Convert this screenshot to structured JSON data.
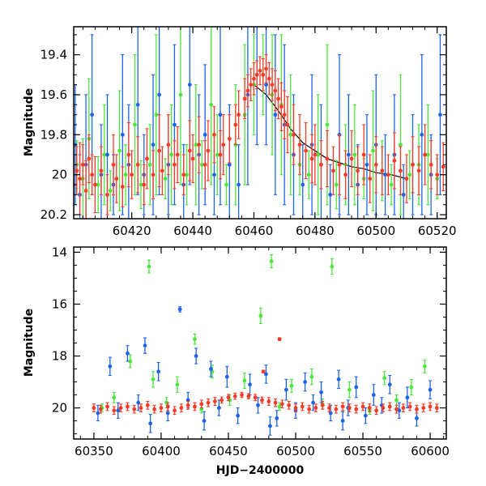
{
  "chart_data": [
    {
      "id": "top",
      "type": "scatter",
      "title": "",
      "xlabel": "",
      "ylabel": "Magnitude",
      "xlim": [
        60401,
        60523
      ],
      "ylim": [
        20.22,
        19.26
      ],
      "y_inverted": true,
      "x_ticks": [
        60420,
        60440,
        60460,
        60480,
        60500,
        60520
      ],
      "y_ticks": [
        19.4,
        19.6,
        19.8,
        20,
        20.2
      ],
      "x_tick_labels": [
        "60420",
        "60440",
        "60460",
        "60480",
        "60500",
        "60520"
      ],
      "y_tick_labels": [
        "19.4",
        "19.6",
        "19.8",
        "20",
        "20.2"
      ],
      "series": [
        {
          "color": "#4ce63c",
          "x": [
            60402,
            60404,
            60406,
            60409,
            60411,
            60413,
            60416,
            60418,
            60421,
            60423,
            60426,
            60428,
            60431,
            60433,
            60436,
            60438,
            60441,
            60443,
            60446,
            60448,
            60451,
            60454,
            60457,
            60460,
            60463,
            60466,
            60469,
            60472,
            60475,
            60478,
            60481,
            60484,
            60487,
            60490,
            60493,
            60496,
            60499,
            60502,
            60505,
            60508,
            60511,
            60514,
            60517,
            60520
          ],
          "y": [
            19.95,
            20.02,
            19.82,
            20.05,
            19.9,
            20.08,
            19.88,
            20.0,
            19.75,
            20.05,
            19.95,
            19.7,
            20.02,
            19.9,
            19.6,
            20.0,
            19.85,
            19.95,
            19.65,
            19.9,
            20.05,
            19.85,
            19.7,
            19.55,
            19.5,
            19.6,
            19.65,
            19.8,
            19.95,
            20.0,
            19.9,
            19.75,
            20.05,
            19.95,
            19.9,
            20.02,
            19.88,
            19.98,
            20.05,
            19.85,
            20.0,
            19.95,
            19.9,
            20.02
          ],
          "err": [
            0.12,
            0.2,
            0.3,
            0.14,
            0.25,
            0.1,
            0.3,
            0.15,
            0.35,
            0.12,
            0.2,
            0.4,
            0.1,
            0.25,
            0.45,
            0.15,
            0.3,
            0.12,
            0.4,
            0.2,
            0.1,
            0.3,
            0.35,
            0.25,
            0.2,
            0.3,
            0.35,
            0.3,
            0.15,
            0.12,
            0.3,
            0.4,
            0.12,
            0.2,
            0.25,
            0.1,
            0.3,
            0.15,
            0.1,
            0.35,
            0.12,
            0.2,
            0.25,
            0.1
          ]
        },
        {
          "color": "#1e64e6",
          "x": [
            60401.5,
            60403,
            60405,
            60407,
            60410,
            60412,
            60414,
            60417,
            60419,
            60422,
            60424,
            60427,
            60429,
            60432,
            60434,
            60437,
            60439,
            60442,
            60444,
            60447,
            60449,
            60452,
            60455,
            60458,
            60461,
            60464,
            60467,
            60470,
            60473,
            60476,
            60479,
            60482,
            60485,
            60488,
            60491,
            60494,
            60497,
            60500,
            60503,
            60506,
            60509,
            60512,
            60515,
            60518,
            60521
          ],
          "y": [
            19.85,
            20.1,
            19.95,
            19.7,
            20.0,
            19.9,
            20.05,
            19.8,
            19.95,
            19.65,
            20.0,
            19.85,
            19.6,
            19.95,
            19.75,
            20.05,
            19.55,
            19.9,
            19.8,
            20.0,
            19.7,
            19.95,
            20.05,
            19.6,
            19.5,
            19.55,
            19.7,
            19.75,
            19.9,
            20.05,
            19.85,
            19.95,
            20.1,
            19.8,
            19.9,
            20.05,
            19.95,
            19.85,
            20.0,
            19.9,
            20.1,
            19.95,
            19.8,
            20.0,
            19.7
          ],
          "err": [
            0.3,
            0.2,
            0.35,
            0.4,
            0.25,
            0.3,
            0.15,
            0.4,
            0.3,
            0.45,
            0.2,
            0.35,
            0.5,
            0.25,
            0.4,
            0.2,
            0.5,
            0.3,
            0.35,
            0.2,
            0.45,
            0.3,
            0.2,
            0.45,
            0.35,
            0.3,
            0.4,
            0.4,
            0.3,
            0.2,
            0.35,
            0.3,
            0.15,
            0.4,
            0.3,
            0.2,
            0.25,
            0.35,
            0.2,
            0.3,
            0.15,
            0.25,
            0.4,
            0.2,
            0.4
          ]
        },
        {
          "color": "#f53c28",
          "x": [
            60401,
            60402,
            60403,
            60404,
            60405,
            60406,
            60407,
            60408,
            60410,
            60412,
            60414,
            60415,
            60417,
            60419,
            60420,
            60422,
            60424,
            60425,
            60427,
            60429,
            60430,
            60432,
            60434,
            60435,
            60437,
            60439,
            60440,
            60442,
            60444,
            60445,
            60447,
            60449,
            60450,
            60452,
            60454,
            60455,
            60457,
            60458,
            60459,
            60460,
            60461,
            60462,
            60463,
            60464,
            60465,
            60466,
            60467,
            60468,
            60469,
            60470,
            60471,
            60473,
            60475,
            60477,
            60479,
            60480,
            60482,
            60484,
            60486,
            60488,
            60490,
            60492,
            60494,
            60496,
            60498,
            60500,
            60502,
            60504,
            60506,
            60508,
            60510,
            60512,
            60514,
            60516,
            60518,
            60520,
            60522
          ],
          "y": [
            20.05,
            19.98,
            20.02,
            19.95,
            20.08,
            19.92,
            20.0,
            20.05,
            19.98,
            20.1,
            19.95,
            20.02,
            20.06,
            19.9,
            20.0,
            19.95,
            20.05,
            19.92,
            20.0,
            19.88,
            19.98,
            19.85,
            19.95,
            19.9,
            20.0,
            19.88,
            19.92,
            19.85,
            19.95,
            19.88,
            19.8,
            19.9,
            19.85,
            19.82,
            19.75,
            19.7,
            19.62,
            19.58,
            19.55,
            19.52,
            19.5,
            19.48,
            19.5,
            19.47,
            19.52,
            19.55,
            19.58,
            19.62,
            19.66,
            19.7,
            19.75,
            19.8,
            19.85,
            19.88,
            19.92,
            19.9,
            19.95,
            19.92,
            19.98,
            19.95,
            20.0,
            19.92,
            19.98,
            19.9,
            20.02,
            19.95,
            19.98,
            20.0,
            19.93,
            19.98,
            20.02,
            19.95,
            19.98,
            19.9,
            19.95,
            20.0,
            19.96
          ],
          "err": [
            0.15,
            0.12,
            0.18,
            0.1,
            0.15,
            0.12,
            0.1,
            0.14,
            0.12,
            0.1,
            0.15,
            0.12,
            0.1,
            0.16,
            0.12,
            0.14,
            0.1,
            0.15,
            0.12,
            0.18,
            0.12,
            0.15,
            0.12,
            0.14,
            0.1,
            0.15,
            0.12,
            0.14,
            0.12,
            0.15,
            0.14,
            0.12,
            0.15,
            0.12,
            0.1,
            0.12,
            0.1,
            0.08,
            0.08,
            0.08,
            0.07,
            0.07,
            0.08,
            0.07,
            0.08,
            0.08,
            0.1,
            0.1,
            0.12,
            0.12,
            0.14,
            0.15,
            0.15,
            0.14,
            0.12,
            0.15,
            0.12,
            0.14,
            0.12,
            0.15,
            0.12,
            0.14,
            0.12,
            0.15,
            0.12,
            0.14,
            0.12,
            0.1,
            0.14,
            0.12,
            0.12,
            0.14,
            0.12,
            0.15,
            0.12,
            0.1,
            0.12
          ]
        }
      ],
      "trend": {
        "color": "#000000",
        "x": [
          60460,
          60464,
          60468,
          60472,
          60476,
          60480,
          60484,
          60488,
          60492,
          60496,
          60500,
          60505,
          60510
        ],
        "y": [
          19.55,
          19.6,
          19.68,
          19.77,
          19.84,
          19.88,
          19.92,
          19.94,
          19.96,
          19.97,
          19.99,
          20.0,
          20.02
        ]
      }
    },
    {
      "id": "bottom",
      "type": "scatter",
      "title": "",
      "xlabel": "HJD−2400000",
      "ylabel": "Magnitude",
      "xlim": [
        60335,
        60612
      ],
      "ylim": [
        21.2,
        13.8
      ],
      "y_inverted": true,
      "x_ticks": [
        60350,
        60400,
        60450,
        60500,
        60550,
        60600
      ],
      "y_ticks": [
        14,
        16,
        18,
        20
      ],
      "x_tick_labels": [
        "60350",
        "60400",
        "60450",
        "60500",
        "60550",
        "60600"
      ],
      "y_tick_labels": [
        "14",
        "16",
        "18",
        "20"
      ],
      "series": [
        {
          "color": "#4ce63c",
          "x": [
            60391,
            60482,
            60527,
            60474,
            60425,
            60377,
            60394,
            60412,
            60438,
            60462,
            60497,
            60512,
            60540,
            60566,
            60586,
            60365,
            60404,
            60451,
            60520,
            60575,
            60596,
            60356,
            60430,
            60488,
            60555
          ],
          "y": [
            14.55,
            14.35,
            14.55,
            16.45,
            17.35,
            18.2,
            18.9,
            19.1,
            18.6,
            18.95,
            19.15,
            18.8,
            19.3,
            18.85,
            19.2,
            19.6,
            19.8,
            19.7,
            19.85,
            19.7,
            18.4,
            20.0,
            20.05,
            19.95,
            20.1
          ],
          "err": [
            0.25,
            0.25,
            0.3,
            0.3,
            0.2,
            0.25,
            0.3,
            0.3,
            0.25,
            0.3,
            0.25,
            0.3,
            0.3,
            0.25,
            0.3,
            0.2,
            0.2,
            0.2,
            0.2,
            0.2,
            0.25,
            0.15,
            0.15,
            0.15,
            0.15
          ]
        },
        {
          "color": "#1e64e6",
          "x": [
            60414,
            60388,
            60375,
            60426,
            60362,
            60398,
            60437,
            60449,
            60466,
            60478,
            60493,
            60507,
            60519,
            60532,
            60545,
            60558,
            60570,
            60583,
            60600,
            60368,
            60383,
            60405,
            60420,
            60443,
            60457,
            60472,
            60486,
            60500,
            60513,
            60526,
            60539,
            60552,
            60564,
            60577,
            60590,
            60353,
            60392,
            60432,
            60481,
            60535
          ],
          "y": [
            16.2,
            17.6,
            17.9,
            18.0,
            18.4,
            18.6,
            18.5,
            18.8,
            19.1,
            18.7,
            19.3,
            19.0,
            19.4,
            18.9,
            19.2,
            19.5,
            19.1,
            19.6,
            19.3,
            20.1,
            19.8,
            20.2,
            19.7,
            20.0,
            20.3,
            19.9,
            20.4,
            20.1,
            19.8,
            20.2,
            20.0,
            20.3,
            19.9,
            20.1,
            20.4,
            20.2,
            20.6,
            20.5,
            20.7,
            20.5
          ],
          "err": [
            0.1,
            0.3,
            0.3,
            0.3,
            0.35,
            0.35,
            0.3,
            0.4,
            0.4,
            0.35,
            0.4,
            0.35,
            0.4,
            0.35,
            0.4,
            0.4,
            0.35,
            0.4,
            0.35,
            0.3,
            0.3,
            0.3,
            0.3,
            0.3,
            0.3,
            0.3,
            0.3,
            0.3,
            0.3,
            0.3,
            0.3,
            0.3,
            0.3,
            0.3,
            0.3,
            0.3,
            0.35,
            0.35,
            0.35,
            0.35
          ]
        },
        {
          "color": "#f53c28",
          "x": [
            60350,
            60355,
            60360,
            60365,
            60370,
            60375,
            60380,
            60385,
            60390,
            60395,
            60400,
            60405,
            60410,
            60415,
            60420,
            60425,
            60430,
            60435,
            60440,
            60445,
            60450,
            60455,
            60460,
            60465,
            60470,
            60475,
            60480,
            60485,
            60490,
            60495,
            60500,
            60505,
            60510,
            60515,
            60520,
            60525,
            60530,
            60535,
            60540,
            60545,
            60550,
            60555,
            60560,
            60565,
            60570,
            60575,
            60580,
            60585,
            60590,
            60595,
            60600,
            60605,
            60488,
            60476
          ],
          "y": [
            20.0,
            20.05,
            19.95,
            20.1,
            20.0,
            19.95,
            20.05,
            20.0,
            19.9,
            20.05,
            20.0,
            19.95,
            20.1,
            20.0,
            19.9,
            19.95,
            19.85,
            19.8,
            19.75,
            19.7,
            19.6,
            19.55,
            19.5,
            19.55,
            19.6,
            19.7,
            19.75,
            19.8,
            19.85,
            19.9,
            20.0,
            19.95,
            20.05,
            20.0,
            19.9,
            20.0,
            20.05,
            19.95,
            20.0,
            20.05,
            19.95,
            20.0,
            20.1,
            20.0,
            19.95,
            20.05,
            20.0,
            19.95,
            20.05,
            20.0,
            19.95,
            20.0,
            17.35,
            18.6
          ],
          "err": [
            0.15,
            0.15,
            0.15,
            0.15,
            0.15,
            0.15,
            0.15,
            0.15,
            0.15,
            0.15,
            0.15,
            0.15,
            0.15,
            0.15,
            0.15,
            0.15,
            0.15,
            0.15,
            0.15,
            0.12,
            0.12,
            0.12,
            0.1,
            0.1,
            0.12,
            0.12,
            0.15,
            0.15,
            0.15,
            0.15,
            0.15,
            0.15,
            0.15,
            0.15,
            0.15,
            0.15,
            0.15,
            0.15,
            0.15,
            0.15,
            0.15,
            0.15,
            0.15,
            0.15,
            0.15,
            0.15,
            0.15,
            0.15,
            0.15,
            0.15,
            0.15,
            0.15,
            0.05,
            0.05
          ]
        }
      ]
    }
  ]
}
